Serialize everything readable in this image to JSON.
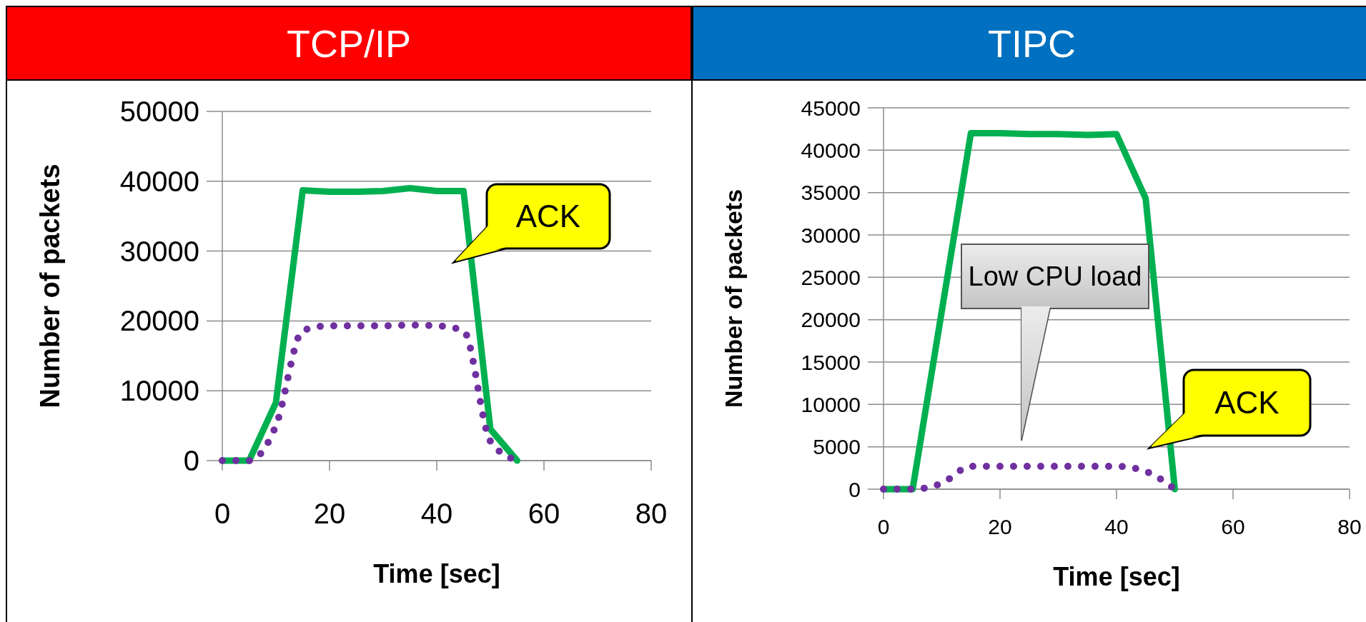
{
  "chart_data": [
    {
      "type": "line",
      "title": "TCP/IP",
      "xlabel": "Time [sec]",
      "ylabel": "Number of packets",
      "x": [
        0,
        5,
        10,
        15,
        20,
        25,
        30,
        35,
        40,
        45,
        50,
        55
      ],
      "xlim": [
        0,
        80
      ],
      "xticks": [
        0,
        20,
        40,
        60,
        80
      ],
      "ylim": [
        0,
        50000
      ],
      "yticks": [
        0,
        10000,
        20000,
        30000,
        40000,
        50000
      ],
      "grid": "y",
      "marker": "none",
      "series": [
        {
          "color": "#00b050",
          "line_style": "solid",
          "values": [
            0,
            0,
            8300,
            38700,
            38500,
            38500,
            38600,
            39000,
            38600,
            38600,
            4500,
            0
          ]
        },
        {
          "color": "#7030a0",
          "line_style": "dotted",
          "values": [
            0,
            0,
            5000,
            18600,
            19300,
            19300,
            19300,
            19400,
            19300,
            18600,
            2800,
            0
          ]
        }
      ],
      "annotations": [
        "ACK"
      ]
    },
    {
      "type": "line",
      "title": "TIPC",
      "xlabel": "Time [sec]",
      "ylabel": "Number of packets",
      "x": [
        0,
        5,
        10,
        15,
        20,
        25,
        30,
        35,
        40,
        45,
        50
      ],
      "xlim": [
        0,
        80
      ],
      "xticks": [
        0,
        20,
        40,
        60,
        80
      ],
      "ylim": [
        0,
        45000
      ],
      "yticks": [
        0,
        5000,
        10000,
        15000,
        20000,
        25000,
        30000,
        35000,
        40000,
        45000
      ],
      "grid": "y",
      "marker": "none",
      "series": [
        {
          "color": "#00b050",
          "line_style": "solid",
          "values": [
            0,
            0,
            21000,
            42000,
            42000,
            41900,
            41900,
            41800,
            41900,
            34300,
            0
          ]
        },
        {
          "color": "#7030a0",
          "line_style": "dotted",
          "values": [
            0,
            0,
            700,
            2700,
            2700,
            2700,
            2700,
            2700,
            2700,
            2100,
            0
          ]
        }
      ],
      "annotations": [
        "ACK",
        "Low CPU load"
      ]
    }
  ]
}
